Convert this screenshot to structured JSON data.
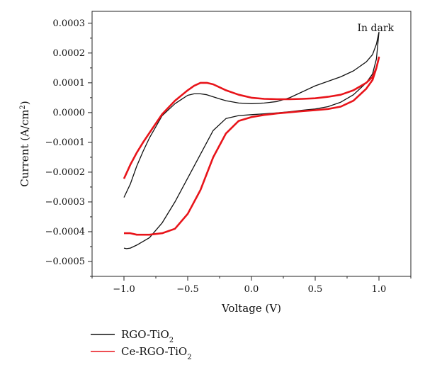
{
  "chart_data": {
    "type": "line",
    "title": "",
    "annotation": "In dark",
    "xlabel": "Voltage (V)",
    "ylabel_main": "Current (A/cm",
    "ylabel_sup": "2",
    "ylabel_close": ")",
    "xlim": [
      -1.25,
      1.25
    ],
    "ylim": [
      -0.00055,
      0.00034
    ],
    "xticks": [
      -1.0,
      -0.5,
      0.0,
      0.5,
      1.0
    ],
    "xtick_labels": [
      "−1.0",
      "−0.5",
      "0.0",
      "0.5",
      "1.0"
    ],
    "yticks": [
      0.0003,
      0.0002,
      0.0001,
      0.0,
      -0.0001,
      -0.0002,
      -0.0003,
      -0.0004,
      -0.0005
    ],
    "ytick_labels": [
      "0.0003",
      "0.0002",
      "0.0001",
      "0.0000",
      "−0.0001",
      "−0.0002",
      "−0.0003",
      "−0.0004",
      "−0.0005"
    ],
    "grid": false,
    "legend_position": "below-left",
    "series": [
      {
        "name": "RGO-TiO",
        "name_sub": "2",
        "color": "#111111",
        "x": [
          -1.0,
          -0.95,
          -0.9,
          -0.85,
          -0.8,
          -0.7,
          -0.6,
          -0.5,
          -0.45,
          -0.4,
          -0.35,
          -0.3,
          -0.25,
          -0.2,
          -0.1,
          0.0,
          0.1,
          0.2,
          0.3,
          0.4,
          0.5,
          0.6,
          0.7,
          0.8,
          0.9,
          0.95,
          0.98,
          1.0,
          0.98,
          0.95,
          0.9,
          0.8,
          0.7,
          0.6,
          0.5,
          0.4,
          0.3,
          0.2,
          0.1,
          0.0,
          -0.1,
          -0.2,
          -0.3,
          -0.4,
          -0.5,
          -0.6,
          -0.7,
          -0.8,
          -0.9,
          -0.95,
          -0.98,
          -1.0
        ],
        "y": [
          -0.000285,
          -0.00024,
          -0.00018,
          -0.00013,
          -8.5e-05,
          -1e-05,
          3e-05,
          5.8e-05,
          6.3e-05,
          6.3e-05,
          6e-05,
          5.3e-05,
          4.6e-05,
          4e-05,
          3.2e-05,
          3e-05,
          3.2e-05,
          3.7e-05,
          5e-05,
          7e-05,
          9e-05,
          0.000105,
          0.00012,
          0.00014,
          0.00017,
          0.000195,
          0.00023,
          0.00027,
          0.00018,
          0.00013,
          0.0001,
          6e-05,
          3.5e-05,
          2e-05,
          1.2e-05,
          8e-06,
          3e-06,
          -1e-06,
          -4e-06,
          -7e-06,
          -1e-05,
          -2e-05,
          -6e-05,
          -0.00014,
          -0.00022,
          -0.0003,
          -0.00037,
          -0.00042,
          -0.000445,
          -0.000455,
          -0.000457,
          -0.000455
        ]
      },
      {
        "name": "Ce-RGO-TiO",
        "name_sub": "2",
        "color": "#e8141a",
        "x": [
          -1.0,
          -0.95,
          -0.9,
          -0.85,
          -0.8,
          -0.7,
          -0.6,
          -0.5,
          -0.45,
          -0.4,
          -0.35,
          -0.3,
          -0.25,
          -0.2,
          -0.1,
          0.0,
          0.1,
          0.2,
          0.3,
          0.4,
          0.5,
          0.6,
          0.7,
          0.8,
          0.9,
          0.95,
          0.98,
          1.0,
          0.98,
          0.95,
          0.9,
          0.8,
          0.7,
          0.6,
          0.5,
          0.4,
          0.3,
          0.2,
          0.1,
          0.0,
          -0.1,
          -0.2,
          -0.3,
          -0.4,
          -0.5,
          -0.6,
          -0.7,
          -0.8,
          -0.9,
          -0.95,
          -0.98,
          -1.0
        ],
        "y": [
          -0.000222,
          -0.000175,
          -0.000135,
          -0.0001,
          -6.8e-05,
          -5e-06,
          4e-05,
          7.5e-05,
          9e-05,
          0.0001,
          0.0001,
          9.5e-05,
          8.5e-05,
          7.5e-05,
          6e-05,
          5e-05,
          4.6e-05,
          4.5e-05,
          4.5e-05,
          4.6e-05,
          4.8e-05,
          5.3e-05,
          6e-05,
          7.5e-05,
          0.0001,
          0.00012,
          0.00015,
          0.000185,
          0.00015,
          0.00011,
          8e-05,
          4e-05,
          2e-05,
          1.2e-05,
          8e-06,
          5e-06,
          1e-06,
          -3e-06,
          -8e-06,
          -1.5e-05,
          -2.8e-05,
          -7e-05,
          -0.00015,
          -0.00026,
          -0.00034,
          -0.00039,
          -0.000405,
          -0.00041,
          -0.00041,
          -0.000405,
          -0.000405,
          -0.000405
        ]
      }
    ]
  }
}
